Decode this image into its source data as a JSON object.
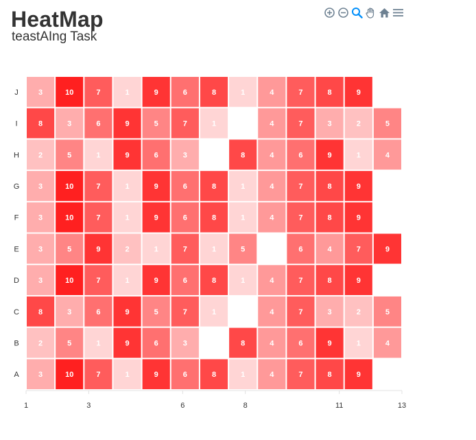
{
  "header": {
    "title": "HeatMap",
    "subtitle": "teastAIng Task"
  },
  "toolbar": {
    "icons": [
      "zoom-in-icon",
      "zoom-out-icon",
      "zoom-selection-icon",
      "pan-hand-icon",
      "reset-home-icon",
      "menu-icon"
    ],
    "color": "#6e8192",
    "active_color": "#008ffb"
  },
  "chart_data": {
    "type": "heatmap",
    "title": "HeatMap",
    "subtitle": "teastAIng Task",
    "xlabel": "",
    "ylabel": "",
    "x_ticks": [
      1,
      3,
      6,
      8,
      11,
      13
    ],
    "xlim": [
      1,
      13
    ],
    "base_color": "#ff2020",
    "value_range": [
      0,
      10
    ],
    "series": [
      {
        "name": "J",
        "values": [
          3,
          10,
          7,
          1,
          9,
          6,
          8,
          1,
          4,
          7,
          8,
          9,
          null
        ]
      },
      {
        "name": "I",
        "values": [
          8,
          3,
          6,
          9,
          5,
          7,
          1,
          null,
          4,
          7,
          3,
          2,
          5
        ]
      },
      {
        "name": "H",
        "values": [
          2,
          5,
          1,
          9,
          6,
          3,
          null,
          8,
          4,
          6,
          9,
          1,
          4
        ]
      },
      {
        "name": "G",
        "values": [
          3,
          10,
          7,
          1,
          9,
          6,
          8,
          1,
          4,
          7,
          8,
          9,
          null
        ]
      },
      {
        "name": "F",
        "values": [
          3,
          10,
          7,
          1,
          9,
          6,
          8,
          1,
          4,
          7,
          8,
          9,
          null
        ]
      },
      {
        "name": "E",
        "values": [
          3,
          5,
          9,
          2,
          1,
          7,
          1,
          5,
          null,
          6,
          4,
          7,
          9
        ]
      },
      {
        "name": "D",
        "values": [
          3,
          10,
          7,
          1,
          9,
          6,
          8,
          1,
          4,
          7,
          8,
          9,
          null
        ]
      },
      {
        "name": "C",
        "values": [
          8,
          3,
          6,
          9,
          5,
          7,
          1,
          null,
          4,
          7,
          3,
          2,
          5
        ]
      },
      {
        "name": "B",
        "values": [
          2,
          5,
          1,
          9,
          6,
          3,
          null,
          8,
          4,
          6,
          9,
          1,
          4
        ]
      },
      {
        "name": "A",
        "values": [
          3,
          10,
          7,
          1,
          9,
          6,
          8,
          1,
          4,
          7,
          8,
          9,
          null
        ]
      }
    ]
  }
}
